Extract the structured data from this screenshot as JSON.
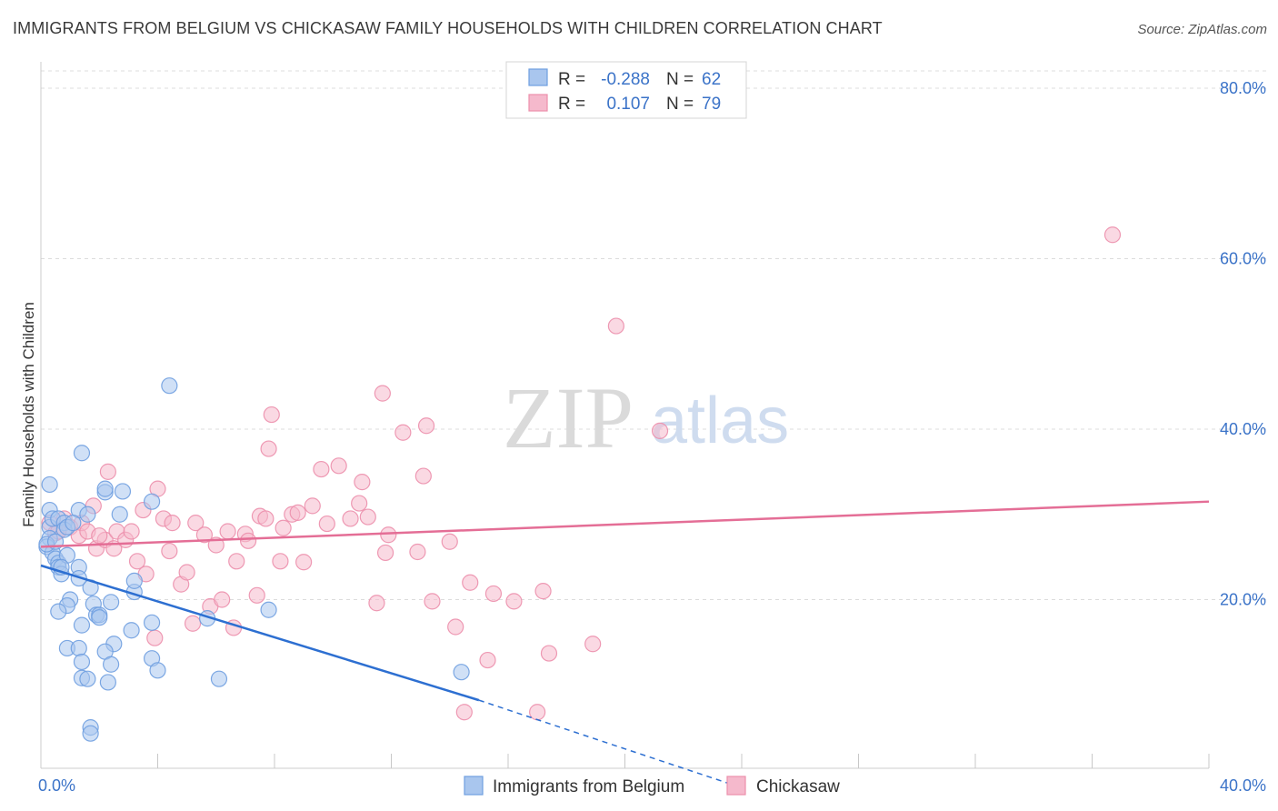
{
  "title": "IMMIGRANTS FROM BELGIUM VS CHICKASAW FAMILY HOUSEHOLDS WITH CHILDREN CORRELATION CHART",
  "source": "Source: ZipAtlas.com",
  "watermark": {
    "zip": "ZIP",
    "atlas": "atlas"
  },
  "colors": {
    "belgium_fill": "#a9c6ee",
    "belgium_stroke": "#6f9fe0",
    "belgium_line": "#2d6fd1",
    "chickasaw_fill": "#f5b9cc",
    "chickasaw_stroke": "#ec8fac",
    "chickasaw_line": "#e46e96",
    "tick_text": "#3b73c8",
    "grid": "#dcdcdc"
  },
  "legend": {
    "rows": [
      {
        "r_label": "R =",
        "r_value": "-0.288",
        "n_label": "N =",
        "n_value": "62"
      },
      {
        "r_label": "R =",
        "r_value": "0.107",
        "n_label": "N =",
        "n_value": "79"
      }
    ]
  },
  "chart_data": {
    "type": "scatter",
    "title": "IMMIGRANTS FROM BELGIUM VS CHICKASAW FAMILY HOUSEHOLDS WITH CHILDREN CORRELATION CHART",
    "xlabel": "",
    "ylabel": "Family Households with Children",
    "xlim": [
      0,
      40
    ],
    "ylim": [
      0,
      80
    ],
    "x_tick_labels": [
      {
        "value": 0,
        "label": "0.0%"
      },
      {
        "value": 40,
        "label": "40.0%"
      }
    ],
    "x_minor_ticks": [
      4,
      8,
      12,
      16,
      20,
      24,
      28,
      32,
      36,
      40
    ],
    "y_ticks": [
      {
        "value": 20,
        "label": "20.0%"
      },
      {
        "value": 40,
        "label": "40.0%"
      },
      {
        "value": 60,
        "label": "60.0%"
      },
      {
        "value": 80,
        "label": "80.0%"
      }
    ],
    "grid": true,
    "legend_position": "top-center",
    "series": [
      {
        "name": "Immigrants from Belgium",
        "r": -0.288,
        "n": 62,
        "trend": {
          "x_start": 0,
          "y_start": 24.0,
          "x_solid_end": 15,
          "y_solid_end": 8.2,
          "x_dash_end": 23.5,
          "y_dash_end": -1.5
        },
        "points": [
          [
            0.3,
            33.5
          ],
          [
            0.3,
            30.5
          ],
          [
            0.3,
            28.5
          ],
          [
            0.3,
            27.2
          ],
          [
            0.2,
            26.2
          ],
          [
            0.4,
            25.5
          ],
          [
            0.5,
            24.8
          ],
          [
            0.6,
            24.3
          ],
          [
            0.6,
            23.8
          ],
          [
            0.7,
            23.0
          ],
          [
            0.4,
            29.5
          ],
          [
            0.6,
            29.5
          ],
          [
            0.8,
            29.0
          ],
          [
            0.8,
            28.2
          ],
          [
            0.9,
            28.5
          ],
          [
            0.9,
            25.2
          ],
          [
            0.7,
            23.8
          ],
          [
            1.0,
            20.0
          ],
          [
            0.9,
            19.3
          ],
          [
            0.6,
            18.6
          ],
          [
            0.9,
            14.3
          ],
          [
            1.3,
            30.5
          ],
          [
            1.6,
            30.0
          ],
          [
            1.3,
            23.8
          ],
          [
            1.3,
            22.5
          ],
          [
            1.4,
            17.0
          ],
          [
            1.3,
            14.3
          ],
          [
            1.4,
            12.7
          ],
          [
            1.4,
            10.8
          ],
          [
            1.6,
            10.7
          ],
          [
            1.4,
            37.2
          ],
          [
            2.2,
            32.6
          ],
          [
            2.2,
            33.0
          ],
          [
            1.7,
            21.4
          ],
          [
            1.8,
            19.5
          ],
          [
            1.9,
            18.2
          ],
          [
            2.0,
            18.2
          ],
          [
            2.4,
            19.7
          ],
          [
            2.5,
            14.8
          ],
          [
            2.2,
            13.9
          ],
          [
            2.4,
            12.4
          ],
          [
            2.3,
            10.3
          ],
          [
            1.7,
            5.0
          ],
          [
            1.7,
            4.3
          ],
          [
            2.8,
            32.7
          ],
          [
            2.7,
            30.0
          ],
          [
            3.2,
            20.9
          ],
          [
            3.2,
            22.2
          ],
          [
            3.1,
            16.4
          ],
          [
            3.8,
            31.5
          ],
          [
            3.8,
            17.3
          ],
          [
            3.8,
            13.1
          ],
          [
            4.0,
            11.7
          ],
          [
            4.4,
            45.1
          ],
          [
            5.7,
            17.8
          ],
          [
            6.1,
            10.7
          ],
          [
            7.8,
            18.8
          ],
          [
            14.4,
            11.5
          ],
          [
            0.2,
            26.5
          ],
          [
            0.5,
            26.8
          ],
          [
            1.1,
            29.0
          ],
          [
            2.0,
            17.9
          ]
        ]
      },
      {
        "name": "Chickasaw",
        "r": 0.107,
        "n": 79,
        "trend": {
          "x_start": 0,
          "y_start": 26.2,
          "x_end": 40,
          "y_end": 31.5
        },
        "points": [
          [
            0.3,
            29.0
          ],
          [
            0.5,
            27.8
          ],
          [
            0.8,
            29.5
          ],
          [
            1.0,
            28.5
          ],
          [
            1.3,
            27.5
          ],
          [
            1.4,
            29.0
          ],
          [
            1.6,
            28.0
          ],
          [
            1.8,
            31.0
          ],
          [
            1.9,
            26.0
          ],
          [
            2.2,
            27.0
          ],
          [
            2.3,
            35.0
          ],
          [
            2.5,
            26.0
          ],
          [
            2.6,
            28.0
          ],
          [
            2.9,
            27.0
          ],
          [
            3.1,
            28.0
          ],
          [
            3.3,
            24.5
          ],
          [
            3.5,
            30.5
          ],
          [
            3.6,
            23.0
          ],
          [
            3.9,
            15.5
          ],
          [
            4.0,
            33.0
          ],
          [
            4.2,
            29.5
          ],
          [
            4.4,
            25.7
          ],
          [
            4.5,
            29.0
          ],
          [
            4.8,
            21.8
          ],
          [
            5.0,
            23.2
          ],
          [
            5.2,
            17.2
          ],
          [
            5.3,
            29.0
          ],
          [
            5.6,
            27.6
          ],
          [
            5.8,
            19.2
          ],
          [
            6.0,
            26.4
          ],
          [
            6.2,
            20.0
          ],
          [
            6.4,
            28.0
          ],
          [
            6.6,
            16.7
          ],
          [
            6.7,
            24.5
          ],
          [
            7.0,
            27.7
          ],
          [
            7.1,
            26.9
          ],
          [
            7.4,
            20.5
          ],
          [
            7.5,
            29.8
          ],
          [
            7.7,
            29.5
          ],
          [
            7.8,
            37.7
          ],
          [
            7.9,
            41.7
          ],
          [
            8.2,
            24.5
          ],
          [
            8.3,
            28.4
          ],
          [
            8.6,
            30.0
          ],
          [
            8.8,
            30.2
          ],
          [
            9.0,
            24.4
          ],
          [
            9.3,
            31.0
          ],
          [
            9.6,
            35.3
          ],
          [
            9.8,
            28.9
          ],
          [
            10.2,
            35.7
          ],
          [
            10.6,
            29.5
          ],
          [
            10.9,
            31.3
          ],
          [
            11.0,
            33.8
          ],
          [
            11.2,
            29.7
          ],
          [
            11.5,
            19.6
          ],
          [
            11.7,
            44.2
          ],
          [
            11.8,
            25.5
          ],
          [
            11.9,
            27.6
          ],
          [
            12.4,
            39.6
          ],
          [
            12.9,
            25.6
          ],
          [
            13.1,
            34.5
          ],
          [
            13.2,
            40.4
          ],
          [
            13.4,
            19.8
          ],
          [
            14.0,
            26.8
          ],
          [
            14.2,
            16.8
          ],
          [
            14.7,
            22.0
          ],
          [
            15.3,
            12.9
          ],
          [
            15.5,
            20.7
          ],
          [
            16.2,
            19.8
          ],
          [
            17.0,
            6.8
          ],
          [
            17.2,
            21.0
          ],
          [
            17.4,
            13.7
          ],
          [
            18.9,
            14.8
          ],
          [
            19.7,
            52.1
          ],
          [
            21.2,
            39.8
          ],
          [
            36.7,
            62.8
          ],
          [
            14.5,
            6.8
          ],
          [
            0.6,
            28.0
          ],
          [
            2.0,
            27.5
          ]
        ]
      }
    ]
  },
  "bottom_legend": [
    {
      "label": "Immigrants from Belgium"
    },
    {
      "label": "Chickasaw"
    }
  ]
}
